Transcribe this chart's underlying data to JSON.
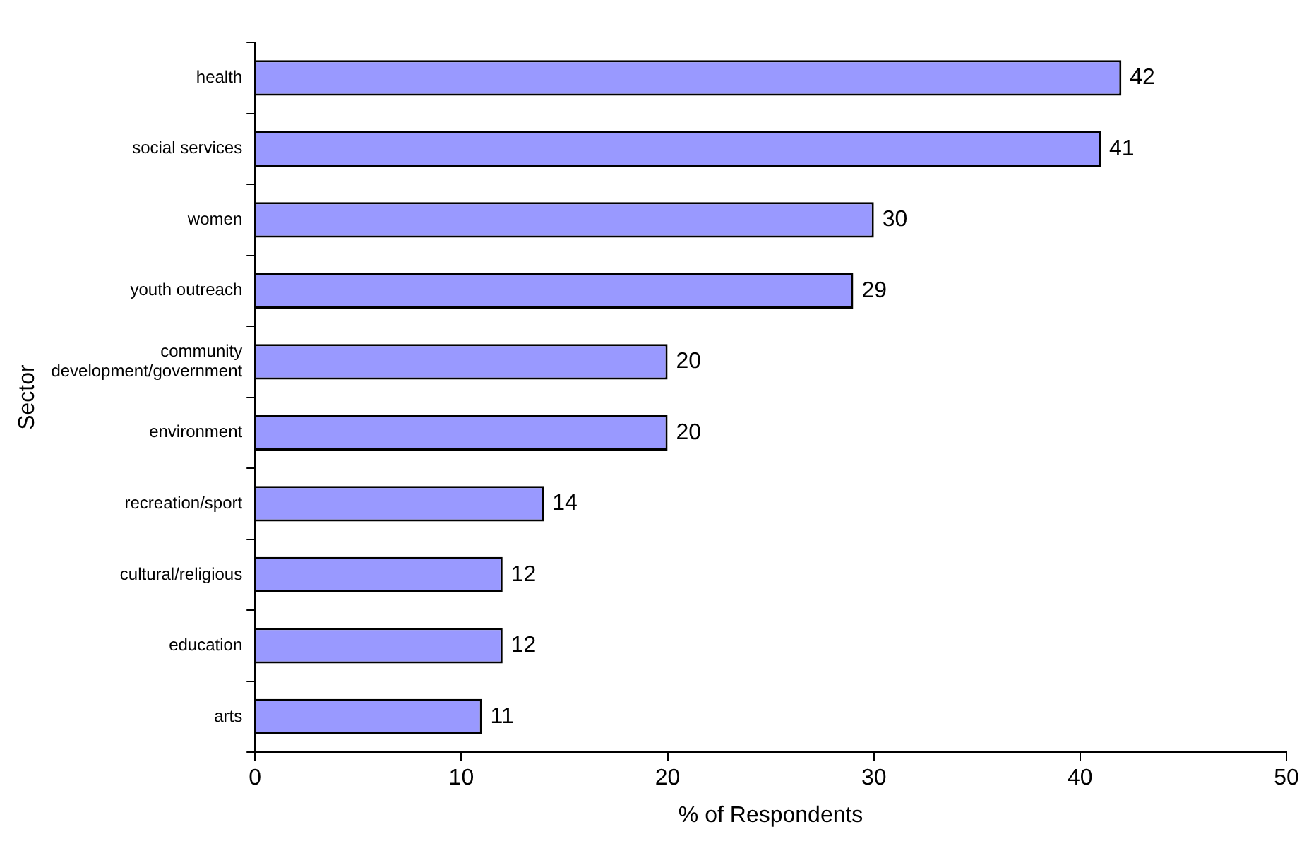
{
  "chart_data": {
    "type": "bar",
    "orientation": "horizontal",
    "xlabel": "% of Respondents",
    "ylabel": "Sector",
    "categories": [
      "health",
      "social services",
      "women",
      "youth outreach",
      "community development/government",
      "environment",
      "recreation/sport",
      "cultural/religious",
      "education",
      "arts"
    ],
    "values": [
      42,
      41,
      30,
      29,
      20,
      20,
      14,
      12,
      12,
      11
    ],
    "color": "#9999ff",
    "xlim": [
      0,
      50
    ],
    "xticks": [
      0,
      10,
      20,
      30,
      40,
      50
    ],
    "grid": false,
    "legend": false,
    "data_labels": true
  }
}
